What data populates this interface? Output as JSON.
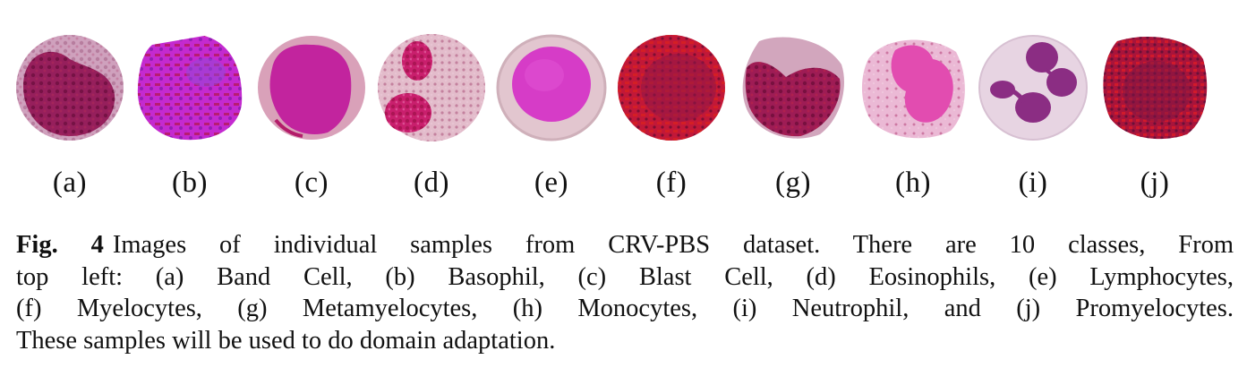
{
  "figure": {
    "panels": [
      {
        "label": "(a)",
        "name": "Band Cell",
        "icon": "band-cell-image"
      },
      {
        "label": "(b)",
        "name": "Basophil",
        "icon": "basophil-image"
      },
      {
        "label": "(c)",
        "name": "Blast Cell",
        "icon": "blast-cell-image"
      },
      {
        "label": "(d)",
        "name": "Eosinophils",
        "icon": "eosinophil-image"
      },
      {
        "label": "(e)",
        "name": "Lymphocytes",
        "icon": "lymphocyte-image"
      },
      {
        "label": "(f)",
        "name": "Myelocytes",
        "icon": "myelocyte-image"
      },
      {
        "label": "(g)",
        "name": "Metamyelocytes",
        "icon": "metamyelocyte-image"
      },
      {
        "label": "(h)",
        "name": "Monocytes",
        "icon": "monocyte-image"
      },
      {
        "label": "(i)",
        "name": "Neutrophil",
        "icon": "neutrophil-image"
      },
      {
        "label": "(j)",
        "name": "Promyelocytes",
        "icon": "promyelocyte-image"
      }
    ]
  },
  "caption": {
    "fig_label": "Fig. 4",
    "line1": "Images of individual samples from CRV-PBS dataset. There are 10 classes, From",
    "line2": "top left: (a) Band Cell, (b) Basophil, (c) Blast Cell, (d) Eosinophils, (e) Lymphocytes,",
    "line3": "(f) Myelocytes, (g) Metamyelocytes, (h) Monocytes, (i) Neutrophil, and (j) Promyelocytes.",
    "line4": "These samples will be used to do domain adaptation."
  },
  "colors": {
    "cytoplasm_light": "#d9a9bf",
    "nucleus_purple": "#8e1a5e",
    "magenta": "#d42ca8",
    "granule_red": "#b3122e"
  }
}
